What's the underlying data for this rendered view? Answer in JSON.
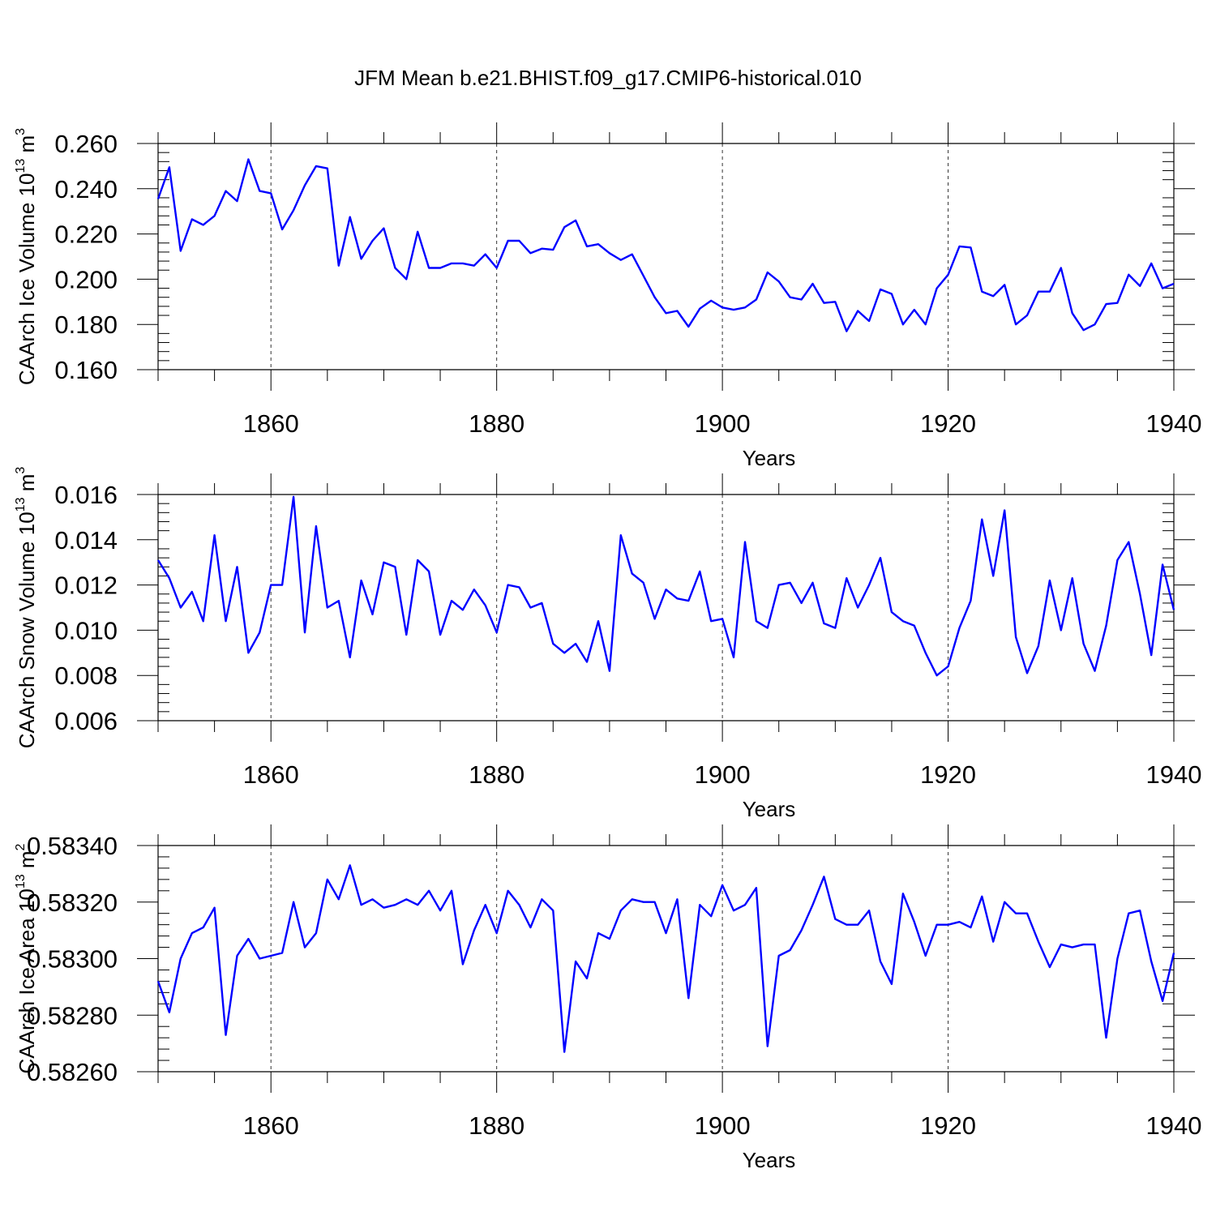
{
  "title": "JFM Mean b.e21.BHIST.f09_g17.CMIP6-historical.010",
  "series_color": "#0000ff",
  "chart_data": [
    {
      "type": "line",
      "title": "JFM Mean b.e21.BHIST.f09_g17.CMIP6-historical.010",
      "ylabel_main": "CAArch Ice Volume 10",
      "ylabel_exp": "13",
      "ylabel_unit": " m",
      "ylabel_unit_exp": "3",
      "xlabel": "Years",
      "xlim": [
        1850,
        1940
      ],
      "ylim": [
        0.16,
        0.26
      ],
      "yticks": [
        0.16,
        0.18,
        0.2,
        0.22,
        0.24,
        0.26
      ],
      "ytick_labels": [
        "0.160",
        "0.180",
        "0.200",
        "0.220",
        "0.240",
        "0.260"
      ],
      "xticks": [
        1860,
        1880,
        1900,
        1920,
        1940
      ],
      "xtick_labels": [
        "1860",
        "1880",
        "1900",
        "1920",
        "1940"
      ],
      "grid": "vertical dashed at major x ticks",
      "x": [
        1850,
        1851,
        1852,
        1853,
        1854,
        1855,
        1856,
        1857,
        1858,
        1859,
        1860,
        1861,
        1862,
        1863,
        1864,
        1865,
        1866,
        1867,
        1868,
        1869,
        1870,
        1871,
        1872,
        1873,
        1874,
        1875,
        1876,
        1877,
        1878,
        1879,
        1880,
        1881,
        1882,
        1883,
        1884,
        1885,
        1886,
        1887,
        1888,
        1889,
        1890,
        1891,
        1892,
        1893,
        1894,
        1895,
        1896,
        1897,
        1898,
        1899,
        1900,
        1901,
        1902,
        1903,
        1904,
        1905,
        1906,
        1907,
        1908,
        1909,
        1910,
        1911,
        1912,
        1913,
        1914,
        1915,
        1916,
        1917,
        1918,
        1919,
        1920,
        1921,
        1922,
        1923,
        1924,
        1925,
        1926,
        1927,
        1928,
        1929,
        1930,
        1931,
        1932,
        1933,
        1934,
        1935,
        1936,
        1937,
        1938,
        1939,
        1940
      ],
      "y": [
        0.2355,
        0.2495,
        0.2125,
        0.2265,
        0.224,
        0.228,
        0.239,
        0.2345,
        0.253,
        0.239,
        0.238,
        0.222,
        0.2305,
        0.2415,
        0.25,
        0.249,
        0.206,
        0.2275,
        0.209,
        0.217,
        0.2225,
        0.205,
        0.2,
        0.221,
        0.205,
        0.205,
        0.207,
        0.207,
        0.206,
        0.211,
        0.205,
        0.217,
        0.217,
        0.2115,
        0.2135,
        0.213,
        0.223,
        0.226,
        0.2145,
        0.2155,
        0.2115,
        0.2085,
        0.211,
        0.2015,
        0.192,
        0.185,
        0.186,
        0.179,
        0.187,
        0.1905,
        0.1875,
        0.1865,
        0.1875,
        0.191,
        0.203,
        0.199,
        0.192,
        0.191,
        0.198,
        0.1895,
        0.19,
        0.177,
        0.186,
        0.1815,
        0.1955,
        0.1935,
        0.18,
        0.1865,
        0.18,
        0.196,
        0.202,
        0.2145,
        0.214,
        0.1945,
        0.1925,
        0.1975,
        0.18,
        0.184,
        0.1945,
        0.1945,
        0.205,
        0.185,
        0.1775,
        0.18,
        0.189,
        0.1895,
        0.202,
        0.197,
        0.207,
        0.196,
        0.198
      ]
    },
    {
      "type": "line",
      "ylabel_main": "CAArch Snow Volume 10",
      "ylabel_exp": "13",
      "ylabel_unit": " m",
      "ylabel_unit_exp": "3",
      "xlabel": "Years",
      "xlim": [
        1850,
        1940
      ],
      "ylim": [
        0.006,
        0.016
      ],
      "yticks": [
        0.006,
        0.008,
        0.01,
        0.012,
        0.014,
        0.016
      ],
      "ytick_labels": [
        "0.006",
        "0.008",
        "0.010",
        "0.012",
        "0.014",
        "0.016"
      ],
      "xticks": [
        1860,
        1880,
        1900,
        1920,
        1940
      ],
      "xtick_labels": [
        "1860",
        "1880",
        "1900",
        "1920",
        "1940"
      ],
      "grid": "vertical dashed at major x ticks",
      "x": [
        1850,
        1851,
        1852,
        1853,
        1854,
        1855,
        1856,
        1857,
        1858,
        1859,
        1860,
        1861,
        1862,
        1863,
        1864,
        1865,
        1866,
        1867,
        1868,
        1869,
        1870,
        1871,
        1872,
        1873,
        1874,
        1875,
        1876,
        1877,
        1878,
        1879,
        1880,
        1881,
        1882,
        1883,
        1884,
        1885,
        1886,
        1887,
        1888,
        1889,
        1890,
        1891,
        1892,
        1893,
        1894,
        1895,
        1896,
        1897,
        1898,
        1899,
        1900,
        1901,
        1902,
        1903,
        1904,
        1905,
        1906,
        1907,
        1908,
        1909,
        1910,
        1911,
        1912,
        1913,
        1914,
        1915,
        1916,
        1917,
        1918,
        1919,
        1920,
        1921,
        1922,
        1923,
        1924,
        1925,
        1926,
        1927,
        1928,
        1929,
        1930,
        1931,
        1932,
        1933,
        1934,
        1935,
        1936,
        1937,
        1938,
        1939,
        1940
      ],
      "y": [
        0.0131,
        0.0123,
        0.011,
        0.0117,
        0.0104,
        0.0142,
        0.0104,
        0.0128,
        0.009,
        0.0099,
        0.012,
        0.012,
        0.0159,
        0.0099,
        0.0146,
        0.011,
        0.0113,
        0.0088,
        0.0122,
        0.0107,
        0.013,
        0.0128,
        0.0098,
        0.0131,
        0.0126,
        0.0098,
        0.0113,
        0.0109,
        0.0118,
        0.0111,
        0.0099,
        0.012,
        0.0119,
        0.011,
        0.0112,
        0.0094,
        0.009,
        0.0094,
        0.0086,
        0.0104,
        0.0082,
        0.0142,
        0.0125,
        0.0121,
        0.0105,
        0.0118,
        0.0114,
        0.0113,
        0.0126,
        0.0104,
        0.0105,
        0.0088,
        0.0139,
        0.0104,
        0.0101,
        0.012,
        0.0121,
        0.0112,
        0.0121,
        0.0103,
        0.0101,
        0.0123,
        0.011,
        0.012,
        0.0132,
        0.0108,
        0.0104,
        0.0102,
        0.009,
        0.008,
        0.0084,
        0.0101,
        0.0113,
        0.0149,
        0.0124,
        0.0153,
        0.0097,
        0.0081,
        0.0093,
        0.0122,
        0.01,
        0.0123,
        0.0094,
        0.0082,
        0.0102,
        0.0131,
        0.0139,
        0.0116,
        0.0089,
        0.0129,
        0.0109
      ]
    },
    {
      "type": "line",
      "ylabel_main": "CAArch Ice Area 10",
      "ylabel_exp": "13",
      "ylabel_unit": " m",
      "ylabel_unit_exp": "2",
      "xlabel": "Years",
      "xlim": [
        1850,
        1940
      ],
      "ylim": [
        0.5826,
        0.5834
      ],
      "yticks": [
        0.5826,
        0.5828,
        0.583,
        0.5832,
        0.5834
      ],
      "ytick_labels": [
        "0.58260",
        "0.58280",
        "0.58300",
        "0.58320",
        "0.58340"
      ],
      "xticks": [
        1860,
        1880,
        1900,
        1920,
        1940
      ],
      "xtick_labels": [
        "1860",
        "1880",
        "1900",
        "1920",
        "1940"
      ],
      "grid": "vertical dashed at major x ticks",
      "x": [
        1850,
        1851,
        1852,
        1853,
        1854,
        1855,
        1856,
        1857,
        1858,
        1859,
        1860,
        1861,
        1862,
        1863,
        1864,
        1865,
        1866,
        1867,
        1868,
        1869,
        1870,
        1871,
        1872,
        1873,
        1874,
        1875,
        1876,
        1877,
        1878,
        1879,
        1880,
        1881,
        1882,
        1883,
        1884,
        1885,
        1886,
        1887,
        1888,
        1889,
        1890,
        1891,
        1892,
        1893,
        1894,
        1895,
        1896,
        1897,
        1898,
        1899,
        1900,
        1901,
        1902,
        1903,
        1904,
        1905,
        1906,
        1907,
        1908,
        1909,
        1910,
        1911,
        1912,
        1913,
        1914,
        1915,
        1916,
        1917,
        1918,
        1919,
        1920,
        1921,
        1922,
        1923,
        1924,
        1925,
        1926,
        1927,
        1928,
        1929,
        1930,
        1931,
        1932,
        1933,
        1934,
        1935,
        1936,
        1937,
        1938,
        1939,
        1940
      ],
      "y": [
        0.58292,
        0.58281,
        0.583,
        0.58309,
        0.58311,
        0.58318,
        0.58273,
        0.58301,
        0.58307,
        0.583,
        0.58301,
        0.58302,
        0.5832,
        0.58304,
        0.58309,
        0.58328,
        0.58321,
        0.58333,
        0.58319,
        0.58321,
        0.58318,
        0.58319,
        0.58321,
        0.58319,
        0.58324,
        0.58317,
        0.58324,
        0.58298,
        0.5831,
        0.58319,
        0.58309,
        0.58324,
        0.58319,
        0.58311,
        0.58321,
        0.58317,
        0.58267,
        0.58299,
        0.58293,
        0.58309,
        0.58307,
        0.58317,
        0.58321,
        0.5832,
        0.5832,
        0.58309,
        0.58321,
        0.58286,
        0.58319,
        0.58315,
        0.58326,
        0.58317,
        0.58319,
        0.58325,
        0.58269,
        0.58301,
        0.58303,
        0.5831,
        0.58319,
        0.58329,
        0.58314,
        0.58312,
        0.58312,
        0.58317,
        0.58299,
        0.58291,
        0.58323,
        0.58313,
        0.58301,
        0.58312,
        0.58312,
        0.58313,
        0.58311,
        0.58322,
        0.58306,
        0.5832,
        0.58316,
        0.58316,
        0.58306,
        0.58297,
        0.58305,
        0.58304,
        0.58305,
        0.58305,
        0.58272,
        0.583,
        0.58316,
        0.58317,
        0.58299,
        0.58285,
        0.58302
      ]
    }
  ]
}
